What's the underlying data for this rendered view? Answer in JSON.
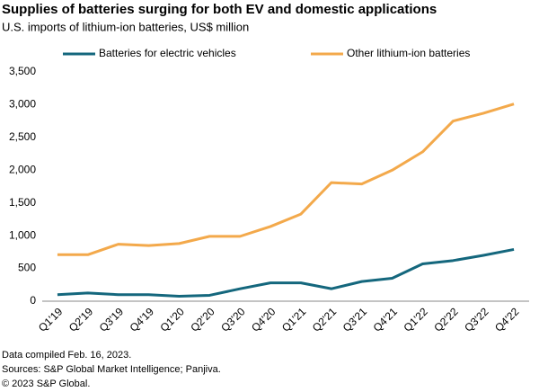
{
  "chart_data": {
    "type": "line",
    "title": "Supplies of batteries surging for both EV and domestic applications",
    "subtitle": "U.S. imports of lithium-ion batteries, US$ million",
    "categories": [
      "Q1'19",
      "Q2'19",
      "Q3'19",
      "Q4'19",
      "Q1'20",
      "Q2'20",
      "Q3'20",
      "Q4'20",
      "Q1'21",
      "Q2'21",
      "Q3'21",
      "Q4'21",
      "Q1'22",
      "Q2'22",
      "Q3'22",
      "Q4'22"
    ],
    "series": [
      {
        "name": "Batteries for electric vehicles",
        "color": "#14677d",
        "values": [
          100,
          125,
          100,
          100,
          75,
          90,
          190,
          280,
          280,
          190,
          300,
          350,
          570,
          620,
          700,
          790
        ]
      },
      {
        "name": "Other lithium-ion batteries",
        "color": "#f3a94b",
        "values": [
          710,
          710,
          870,
          850,
          880,
          990,
          990,
          1140,
          1330,
          1810,
          1790,
          2000,
          2280,
          2750,
          2870,
          3010
        ]
      }
    ],
    "ylim": [
      0,
      3500
    ],
    "yticks": [
      0,
      500,
      {
        "value": 1000,
        "label": "1,000"
      },
      {
        "value": 1500,
        "label": "1,500"
      },
      {
        "value": 2000,
        "label": "2,000"
      },
      {
        "value": 2500,
        "label": "2,500"
      },
      {
        "value": 3000,
        "label": "3,000"
      },
      {
        "value": 3500,
        "label": "3,500"
      }
    ],
    "grid": false,
    "legend": "top",
    "notes": [
      "Data compiled Feb. 16, 2023.",
      "Sources: S&P Global Market Intelligence;  Panjiva.",
      "© 2023 S&P Global."
    ]
  }
}
